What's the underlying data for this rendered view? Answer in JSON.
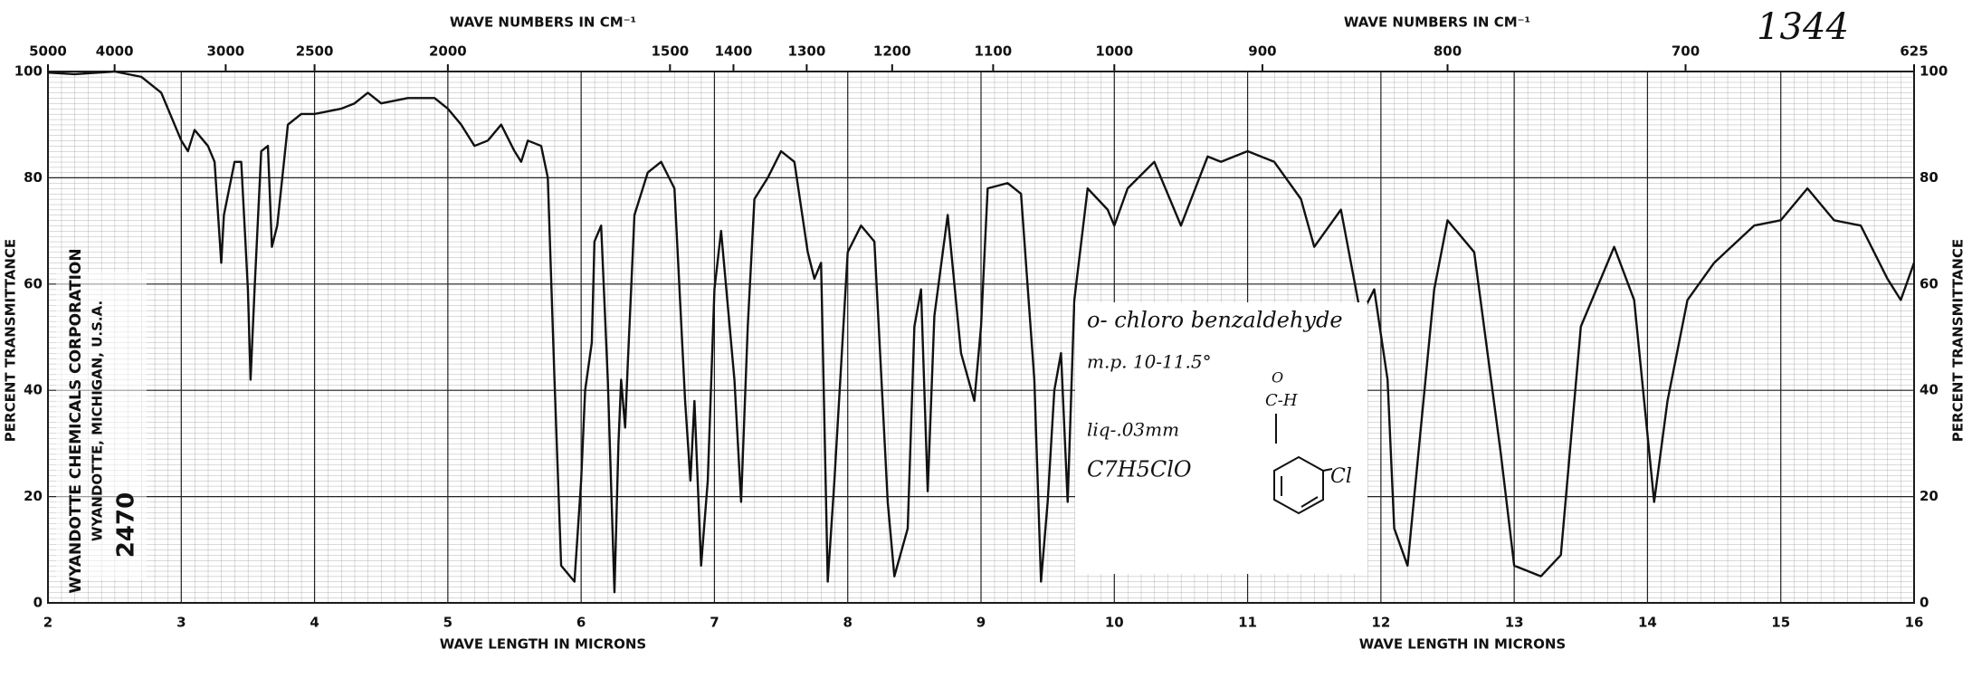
{
  "chart_data": {
    "type": "line",
    "xlabel": "WAVE LENGTH IN MICRONS",
    "x2label": "WAVE NUMBERS IN CM⁻¹",
    "ylabel": "PERCENT TRANSMITTANCE",
    "xlim": [
      2,
      16
    ],
    "xticks": [
      2,
      3,
      4,
      5,
      6,
      7,
      8,
      9,
      10,
      11,
      12,
      13,
      14,
      15,
      16
    ],
    "x2ticks": [
      5000,
      4000,
      3000,
      2500,
      2000,
      1500,
      1400,
      1300,
      1200,
      1100,
      1000,
      900,
      800,
      700,
      625
    ],
    "ylim": [
      0,
      100
    ],
    "yticks": [
      0,
      20,
      40,
      60,
      80,
      100
    ],
    "grid": true,
    "color": "#111111",
    "x": [
      2.0,
      2.2,
      2.5,
      2.7,
      2.85,
      3.0,
      3.05,
      3.1,
      3.2,
      3.25,
      3.3,
      3.32,
      3.4,
      3.45,
      3.5,
      3.52,
      3.55,
      3.6,
      3.65,
      3.68,
      3.72,
      3.8,
      3.9,
      4.0,
      4.2,
      4.3,
      4.4,
      4.5,
      4.7,
      4.9,
      5.0,
      5.1,
      5.2,
      5.3,
      5.4,
      5.5,
      5.55,
      5.6,
      5.7,
      5.75,
      5.8,
      5.85,
      5.95,
      6.0,
      6.03,
      6.08,
      6.1,
      6.15,
      6.2,
      6.25,
      6.28,
      6.3,
      6.33,
      6.35,
      6.4,
      6.5,
      6.6,
      6.7,
      6.78,
      6.82,
      6.85,
      6.9,
      6.95,
      7.0,
      7.05,
      7.15,
      7.2,
      7.25,
      7.3,
      7.4,
      7.5,
      7.6,
      7.7,
      7.75,
      7.8,
      7.85,
      7.9,
      8.0,
      8.1,
      8.2,
      8.3,
      8.35,
      8.45,
      8.5,
      8.55,
      8.6,
      8.65,
      8.75,
      8.85,
      8.95,
      9.0,
      9.05,
      9.2,
      9.3,
      9.4,
      9.45,
      9.5,
      9.55,
      9.6,
      9.65,
      9.7,
      9.8,
      9.95,
      10.0,
      10.1,
      10.3,
      10.5,
      10.7,
      10.8,
      11.0,
      11.2,
      11.4,
      11.5,
      11.7,
      11.85,
      11.95,
      12.05,
      12.1,
      12.2,
      12.4,
      12.5,
      12.7,
      12.9,
      13.0,
      13.2,
      13.35,
      13.5,
      13.75,
      13.9,
      14.05,
      14.15,
      14.3,
      14.5,
      14.8,
      15.0,
      15.2,
      15.4,
      15.6,
      15.8,
      15.9,
      16.0
    ],
    "values": [
      99.8,
      99.5,
      100,
      99,
      96,
      87,
      85,
      89,
      86,
      83,
      64,
      73,
      83,
      83,
      59,
      42,
      59,
      85,
      86,
      67,
      71,
      90,
      92,
      92,
      93,
      94,
      96,
      94,
      95,
      95,
      93,
      90,
      86,
      87,
      90,
      85,
      83,
      87,
      86,
      80,
      42,
      7,
      4,
      23,
      40,
      49,
      68,
      71,
      42,
      2,
      30,
      42,
      33,
      45,
      73,
      81,
      83,
      78,
      38,
      23,
      38,
      7,
      23,
      59,
      70,
      42,
      19,
      52,
      76,
      80,
      85,
      83,
      66,
      61,
      64,
      4,
      23,
      66,
      71,
      68,
      19,
      5,
      14,
      52,
      59,
      21,
      54,
      73,
      47,
      38,
      52,
      78,
      79,
      77,
      42,
      4,
      19,
      40,
      47,
      19,
      57,
      78,
      74,
      71,
      78,
      83,
      71,
      84,
      83,
      85,
      83,
      76,
      67,
      74,
      54,
      59,
      42,
      14,
      7,
      59,
      72,
      66,
      28,
      7,
      5,
      9,
      52,
      67,
      57,
      19,
      38,
      57,
      64,
      71,
      72,
      78,
      72,
      71,
      61,
      57,
      64
    ],
    "annotations": {
      "chart_number": "1344",
      "company": [
        "WYANDOTTE CHEMICALS CORPORATION",
        "WYANDOTTE, MICHIGAN, U.S.A.",
        "2470"
      ],
      "sample": [
        "o- chloro benzaldehyde",
        "m.p. 10-11.5°",
        "liq-.03mm",
        "C7H5ClO"
      ],
      "structure": [
        "O",
        "C-H",
        "Cl"
      ]
    }
  }
}
